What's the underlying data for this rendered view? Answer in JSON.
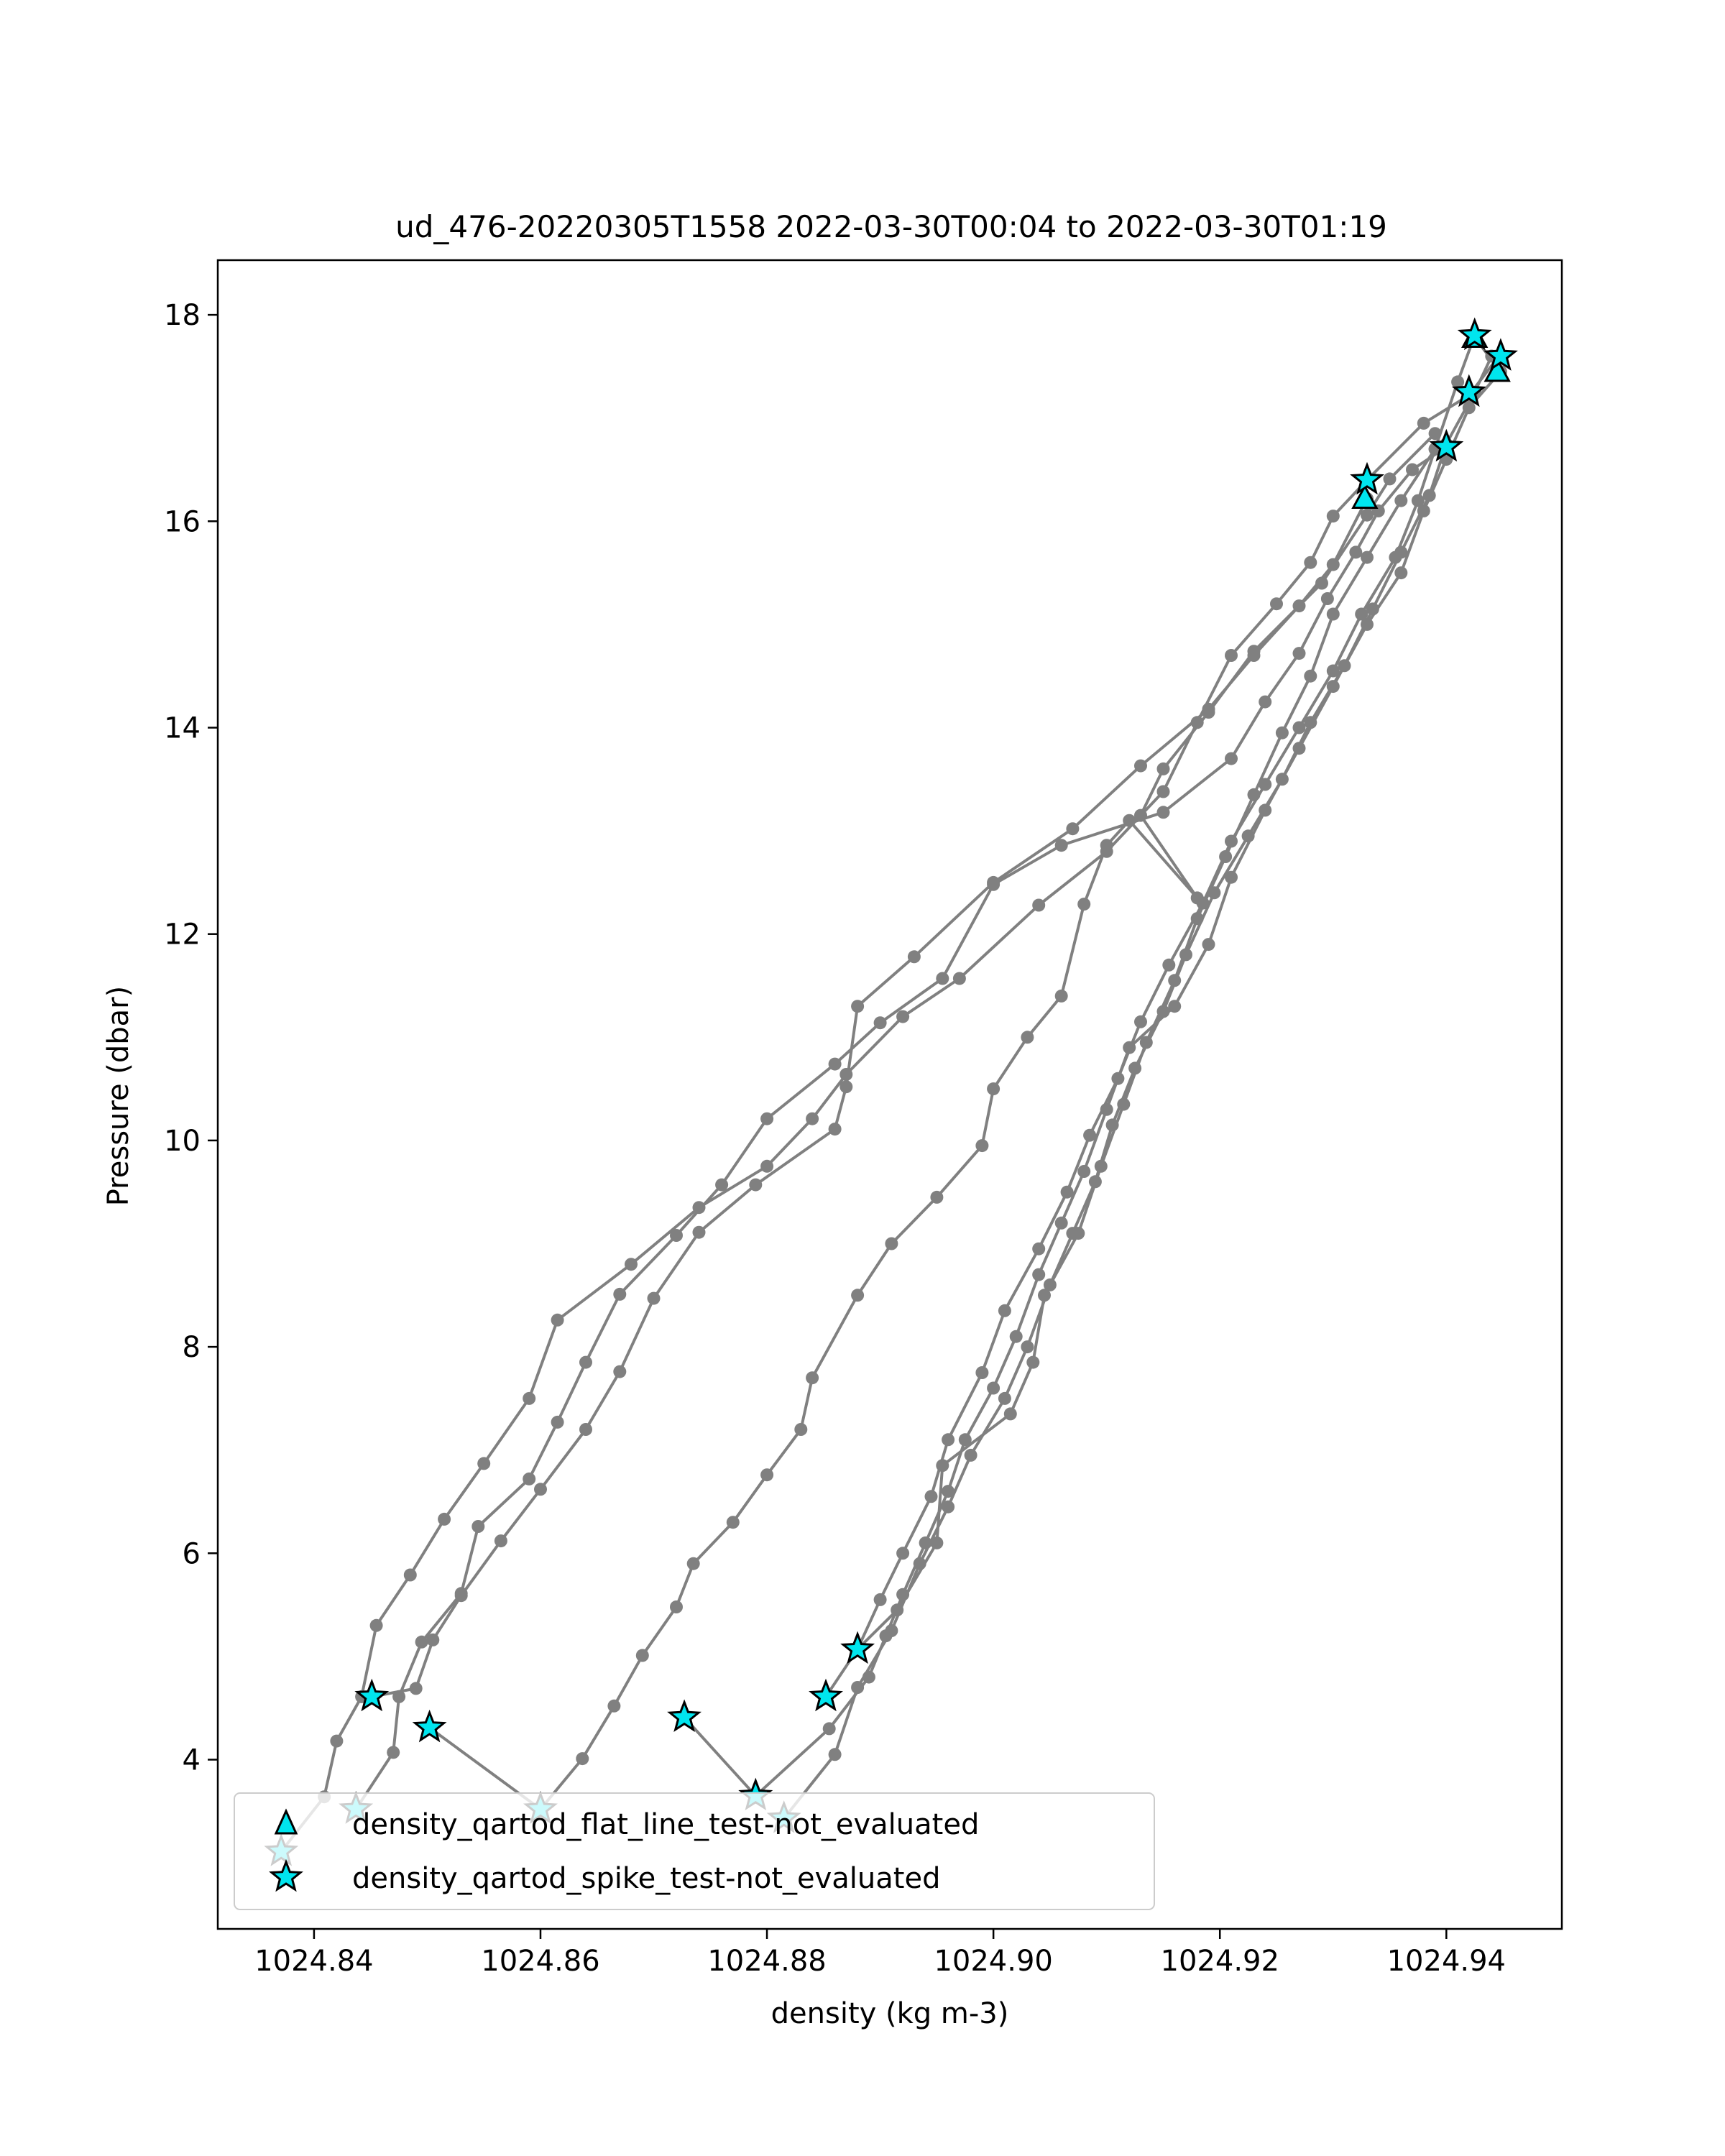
{
  "chart_data": {
    "type": "line",
    "title": "ud_476-20220305T1558 2022-03-30T00:04 to 2022-03-30T01:19",
    "xlabel": "density (kg m-3)",
    "ylabel": "Pressure (dbar)",
    "xlim": [
      1024.8315,
      1024.9502
    ],
    "ylim": [
      18.53,
      2.36
    ],
    "y_inverted": true,
    "grid": false,
    "xticks": [
      1024.84,
      1024.86,
      1024.88,
      1024.9,
      1024.92,
      1024.94
    ],
    "xtick_labels": [
      "1024.84",
      "1024.86",
      "1024.88",
      "1024.90",
      "1024.92",
      "1024.94"
    ],
    "yticks": [
      4,
      6,
      8,
      10,
      12,
      14,
      16,
      18
    ],
    "ytick_labels": [
      "4",
      "6",
      "8",
      "10",
      "12",
      "14",
      "16",
      "18"
    ],
    "line_color": "#808080",
    "marker_face_color": "#00e5ee",
    "legend_position": "lower-left",
    "legend": [
      {
        "label": "density_qartod_flat_line_test-not_evaluated",
        "marker": "triangle"
      },
      {
        "label": "density_qartod_spike_test-not_evaluated",
        "marker": "star"
      }
    ],
    "series": [
      {
        "values": [
          [
            1024.8371,
            3.11
          ],
          [
            1024.8409,
            3.64
          ],
          [
            1024.842,
            4.18
          ],
          [
            1024.8442,
            4.61
          ],
          [
            1024.8455,
            5.3
          ],
          [
            1024.8485,
            5.79
          ],
          [
            1024.8515,
            6.33
          ],
          [
            1024.855,
            6.87
          ],
          [
            1024.859,
            7.5
          ],
          [
            1024.8615,
            8.26
          ],
          [
            1024.868,
            8.8
          ],
          [
            1024.874,
            9.35
          ],
          [
            1024.88,
            9.75
          ],
          [
            1024.884,
            10.21
          ],
          [
            1024.887,
            10.64
          ],
          [
            1024.892,
            11.2
          ],
          [
            1024.897,
            11.57
          ],
          [
            1024.904,
            12.28
          ],
          [
            1024.91,
            12.8
          ],
          [
            1024.915,
            13.38
          ],
          [
            1024.918,
            14.05
          ],
          [
            1024.921,
            14.7
          ],
          [
            1024.925,
            15.2
          ],
          [
            1024.928,
            15.6
          ],
          [
            1024.93,
            16.05
          ],
          [
            1024.933,
            16.4
          ],
          [
            1024.938,
            16.95
          ],
          [
            1024.942,
            17.22
          ],
          [
            1024.9445,
            17.58
          ]
        ]
      },
      {
        "values": [
          [
            1024.8437,
            3.52
          ],
          [
            1024.847,
            4.07
          ],
          [
            1024.8475,
            4.61
          ],
          [
            1024.8495,
            5.14
          ],
          [
            1024.853,
            5.61
          ],
          [
            1024.8545,
            6.26
          ],
          [
            1024.859,
            6.72
          ],
          [
            1024.8615,
            7.27
          ],
          [
            1024.864,
            7.85
          ],
          [
            1024.867,
            8.51
          ],
          [
            1024.872,
            9.08
          ],
          [
            1024.876,
            9.57
          ],
          [
            1024.88,
            10.21
          ],
          [
            1024.886,
            10.74
          ],
          [
            1024.89,
            11.14
          ],
          [
            1024.8955,
            11.57
          ],
          [
            1024.9,
            12.48
          ],
          [
            1024.906,
            12.86
          ],
          [
            1024.915,
            13.18
          ],
          [
            1024.921,
            13.7
          ],
          [
            1024.924,
            14.25
          ],
          [
            1024.927,
            14.72
          ],
          [
            1024.9295,
            15.25
          ],
          [
            1024.932,
            15.7
          ],
          [
            1024.934,
            16.1
          ],
          [
            1024.937,
            16.5
          ],
          [
            1024.94,
            16.72
          ]
        ]
      },
      {
        "values": [
          [
            1024.8451,
            4.61
          ],
          [
            1024.849,
            4.69
          ],
          [
            1024.8505,
            5.16
          ],
          [
            1024.853,
            5.59
          ],
          [
            1024.8565,
            6.12
          ],
          [
            1024.86,
            6.62
          ],
          [
            1024.864,
            7.2
          ],
          [
            1024.867,
            7.76
          ],
          [
            1024.87,
            8.47
          ],
          [
            1024.874,
            9.11
          ],
          [
            1024.879,
            9.57
          ],
          [
            1024.886,
            10.11
          ],
          [
            1024.887,
            10.52
          ],
          [
            1024.888,
            11.3
          ],
          [
            1024.893,
            11.78
          ],
          [
            1024.9,
            12.5
          ],
          [
            1024.907,
            13.02
          ],
          [
            1024.913,
            13.63
          ],
          [
            1024.919,
            14.18
          ],
          [
            1024.923,
            14.7
          ],
          [
            1024.927,
            15.18
          ],
          [
            1024.93,
            15.58
          ],
          [
            1024.933,
            16.22
          ]
        ]
      },
      {
        "values": [
          [
            1024.8502,
            4.31
          ],
          [
            1024.86,
            3.52
          ],
          [
            1024.8637,
            4.01
          ],
          [
            1024.8665,
            4.52
          ],
          [
            1024.869,
            5.01
          ],
          [
            1024.872,
            5.48
          ],
          [
            1024.8735,
            5.9
          ],
          [
            1024.877,
            6.3
          ],
          [
            1024.88,
            6.76
          ],
          [
            1024.883,
            7.2
          ],
          [
            1024.884,
            7.7
          ],
          [
            1024.888,
            8.5
          ],
          [
            1024.891,
            9.0
          ],
          [
            1024.895,
            9.45
          ],
          [
            1024.899,
            9.95
          ],
          [
            1024.9,
            10.5
          ],
          [
            1024.903,
            11.0
          ],
          [
            1024.906,
            11.4
          ],
          [
            1024.908,
            12.29
          ],
          [
            1024.91,
            12.86
          ],
          [
            1024.912,
            13.1
          ],
          [
            1024.918,
            12.35
          ],
          [
            1024.913,
            13.15
          ],
          [
            1024.915,
            13.6
          ],
          [
            1024.919,
            14.15
          ],
          [
            1024.923,
            14.74
          ],
          [
            1024.929,
            15.4
          ],
          [
            1024.933,
            16.06
          ],
          [
            1024.935,
            16.41
          ],
          [
            1024.939,
            16.85
          ]
        ]
      },
      {
        "values": [
          [
            1024.8727,
            4.41
          ],
          [
            1024.879,
            3.65
          ],
          [
            1024.8855,
            4.3
          ],
          [
            1024.889,
            4.8
          ],
          [
            1024.8905,
            5.2
          ],
          [
            1024.892,
            5.6
          ],
          [
            1024.894,
            6.1
          ],
          [
            1024.896,
            6.6
          ],
          [
            1024.8975,
            7.1
          ],
          [
            1024.9,
            7.6
          ],
          [
            1024.902,
            8.1
          ],
          [
            1024.904,
            8.7
          ],
          [
            1024.906,
            9.2
          ],
          [
            1024.908,
            9.7
          ],
          [
            1024.91,
            10.3
          ],
          [
            1024.912,
            10.9
          ],
          [
            1024.916,
            11.3
          ],
          [
            1024.919,
            11.9
          ],
          [
            1024.921,
            12.55
          ],
          [
            1024.924,
            13.2
          ],
          [
            1024.927,
            13.8
          ],
          [
            1024.93,
            14.4
          ],
          [
            1024.933,
            15.0
          ],
          [
            1024.936,
            15.5
          ],
          [
            1024.938,
            16.1
          ],
          [
            1024.94,
            16.6
          ],
          [
            1024.942,
            17.1
          ],
          [
            1024.9448,
            17.45
          ],
          [
            1024.9425,
            17.78
          ]
        ]
      },
      {
        "values": [
          [
            1024.8815,
            3.43
          ],
          [
            1024.886,
            4.05
          ],
          [
            1024.888,
            4.7
          ],
          [
            1024.891,
            5.25
          ],
          [
            1024.8935,
            5.9
          ],
          [
            1024.896,
            6.45
          ],
          [
            1024.898,
            6.95
          ],
          [
            1024.901,
            7.5
          ],
          [
            1024.903,
            8.0
          ],
          [
            1024.905,
            8.6
          ],
          [
            1024.907,
            9.1
          ],
          [
            1024.909,
            9.6
          ],
          [
            1024.9105,
            10.15
          ],
          [
            1024.9125,
            10.7
          ],
          [
            1024.915,
            11.25
          ],
          [
            1024.917,
            11.8
          ],
          [
            1024.9195,
            12.4
          ],
          [
            1024.9225,
            12.95
          ],
          [
            1024.9255,
            13.5
          ],
          [
            1024.928,
            14.05
          ],
          [
            1024.931,
            14.6
          ],
          [
            1024.9335,
            15.15
          ],
          [
            1024.936,
            15.7
          ],
          [
            1024.9385,
            16.25
          ],
          [
            1024.94,
            16.75
          ],
          [
            1024.9425,
            17.25
          ],
          [
            1024.944,
            17.6
          ]
        ]
      },
      {
        "values": [
          [
            1024.8852,
            4.61
          ],
          [
            1024.888,
            5.07
          ],
          [
            1024.89,
            5.55
          ],
          [
            1024.892,
            6.0
          ],
          [
            1024.8945,
            6.55
          ],
          [
            1024.896,
            7.1
          ],
          [
            1024.899,
            7.75
          ],
          [
            1024.901,
            8.35
          ],
          [
            1024.904,
            8.95
          ],
          [
            1024.9065,
            9.5
          ],
          [
            1024.9085,
            10.05
          ],
          [
            1024.911,
            10.6
          ],
          [
            1024.913,
            11.15
          ],
          [
            1024.9155,
            11.7
          ],
          [
            1024.9185,
            12.3
          ],
          [
            1024.921,
            12.9
          ],
          [
            1024.924,
            13.45
          ],
          [
            1024.927,
            14.0
          ],
          [
            1024.93,
            14.55
          ],
          [
            1024.9325,
            15.1
          ],
          [
            1024.9355,
            15.65
          ],
          [
            1024.9375,
            16.2
          ],
          [
            1024.939,
            16.7
          ],
          [
            1024.941,
            17.35
          ],
          [
            1024.9425,
            17.8
          ]
        ]
      },
      {
        "values": [
          [
            1024.888,
            5.07
          ],
          [
            1024.8915,
            5.45
          ],
          [
            1024.895,
            6.1
          ],
          [
            1024.8955,
            6.85
          ],
          [
            1024.9015,
            7.35
          ],
          [
            1024.9035,
            7.85
          ],
          [
            1024.9045,
            8.5
          ],
          [
            1024.9075,
            9.1
          ],
          [
            1024.9095,
            9.75
          ],
          [
            1024.9115,
            10.35
          ],
          [
            1024.9135,
            10.95
          ],
          [
            1024.916,
            11.55
          ],
          [
            1024.918,
            12.15
          ],
          [
            1024.9205,
            12.75
          ],
          [
            1024.923,
            13.35
          ],
          [
            1024.9255,
            13.95
          ],
          [
            1024.928,
            14.5
          ],
          [
            1024.93,
            15.1
          ],
          [
            1024.933,
            15.65
          ],
          [
            1024.936,
            16.2
          ],
          [
            1024.939,
            16.7
          ]
        ]
      }
    ],
    "flat_line_flags": [
      [
        1024.9328,
        16.22
      ],
      [
        1024.9445,
        17.45
      ],
      [
        1024.9425,
        17.78
      ]
    ],
    "spike_flags": [
      [
        1024.8371,
        3.11
      ],
      [
        1024.8437,
        3.52
      ],
      [
        1024.86,
        3.52
      ],
      [
        1024.8815,
        3.43
      ],
      [
        1024.879,
        3.65
      ],
      [
        1024.8502,
        4.31
      ],
      [
        1024.8727,
        4.41
      ],
      [
        1024.8451,
        4.61
      ],
      [
        1024.8852,
        4.61
      ],
      [
        1024.888,
        5.07
      ],
      [
        1024.933,
        16.4
      ],
      [
        1024.94,
        16.72
      ],
      [
        1024.942,
        17.25
      ],
      [
        1024.9448,
        17.6
      ],
      [
        1024.9425,
        17.8
      ]
    ]
  }
}
